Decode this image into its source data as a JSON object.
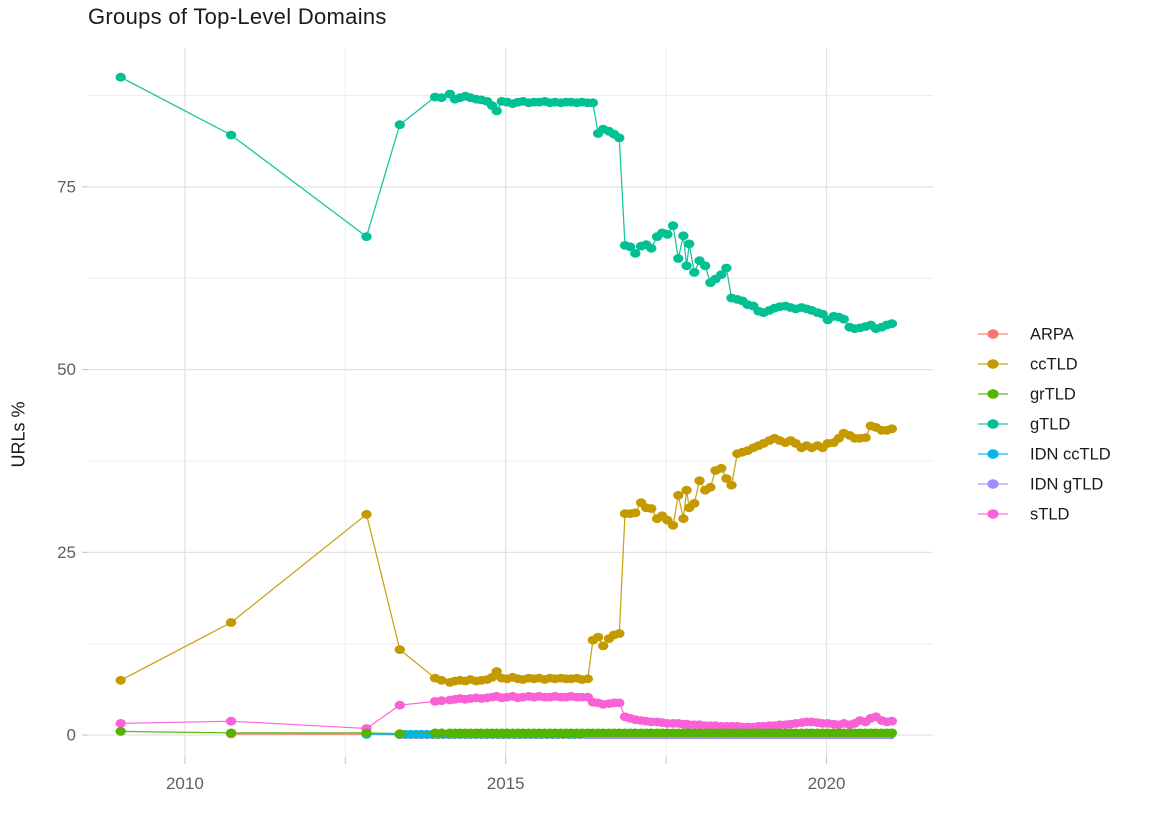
{
  "chart_data": {
    "type": "line",
    "title": "Groups of Top-Level Domains",
    "xlabel": "",
    "ylabel": "URLs %",
    "legend_position": "right",
    "grid": true,
    "xlim": [
      2008.49,
      2021.66
    ],
    "ylim": [
      -3,
      94
    ],
    "x_ticks": [
      2010,
      2015,
      2020
    ],
    "x_tick_labels": [
      "2010",
      "2015",
      "2020"
    ],
    "x_minor": [
      2012.5,
      2017.5
    ],
    "y_ticks": [
      0,
      25,
      50,
      75
    ],
    "y_tick_labels": [
      "0",
      "25",
      "50",
      "75"
    ],
    "y_minor": [
      12.5,
      37.5,
      62.5,
      87.5
    ],
    "shared_x": [
      2009.0,
      2010.72,
      2012.83,
      2013.35,
      2013.9,
      2014.0,
      2014.13,
      2014.21,
      2014.29,
      2014.37,
      2014.45,
      2014.54,
      2014.62,
      2014.71,
      2014.79,
      2014.86,
      2014.94,
      2015.02,
      2015.11,
      2015.19,
      2015.27,
      2015.36,
      2015.44,
      2015.52,
      2015.61,
      2015.69,
      2015.77,
      2015.86,
      2015.94,
      2016.02,
      2016.11,
      2016.19,
      2016.28,
      2016.36,
      2016.44,
      2016.52,
      2016.61,
      2016.69,
      2016.77,
      2016.86,
      2016.94,
      2017.02,
      2017.11,
      2017.19,
      2017.27,
      2017.36,
      2017.44,
      2017.52,
      2017.61,
      2017.69,
      2017.77,
      2017.82,
      2017.86,
      2017.94,
      2018.02,
      2018.11,
      2018.19,
      2018.27,
      2018.36,
      2018.44,
      2018.52,
      2018.61,
      2018.69,
      2018.77,
      2018.86,
      2018.94,
      2019.02,
      2019.11,
      2019.19,
      2019.27,
      2019.36,
      2019.44,
      2019.52,
      2019.61,
      2019.69,
      2019.77,
      2019.86,
      2019.94,
      2020.02,
      2020.11,
      2020.19,
      2020.27,
      2020.36,
      2020.44,
      2020.52,
      2020.61,
      2020.69,
      2020.77,
      2020.86,
      2020.94,
      2021.02
    ],
    "series": [
      {
        "name": "ARPA",
        "color": "#F8766D",
        "x_pre": [
          2010.72,
          2012.83
        ],
        "y_pre": [
          0.15,
          0.1
        ],
        "x_seq": [
          2013.35,
          2021.02,
          0.085
        ],
        "y_const": 0.05
      },
      {
        "name": "ccTLD",
        "color": "#C49A00",
        "x_key": "shared_x",
        "y": [
          7.5,
          15.4,
          30.2,
          11.7,
          7.8,
          7.5,
          7.2,
          7.4,
          7.5,
          7.4,
          7.6,
          7.4,
          7.5,
          7.6,
          7.9,
          8.7,
          7.8,
          7.7,
          7.9,
          7.7,
          7.6,
          7.8,
          7.7,
          7.8,
          7.6,
          7.8,
          7.7,
          7.8,
          7.7,
          7.7,
          7.8,
          7.6,
          7.7,
          13.0,
          13.4,
          12.2,
          13.2,
          13.7,
          13.9,
          30.3,
          30.3,
          30.4,
          31.8,
          31.1,
          31.0,
          29.6,
          30.0,
          29.4,
          28.7,
          32.8,
          29.6,
          33.5,
          31.1,
          31.7,
          34.8,
          33.5,
          33.9,
          36.2,
          36.5,
          35.1,
          34.2,
          38.5,
          38.7,
          38.9,
          39.3,
          39.6,
          39.9,
          40.3,
          40.6,
          40.3,
          40.0,
          40.3,
          39.9,
          39.3,
          39.6,
          39.3,
          39.6,
          39.3,
          39.9,
          40.0,
          40.6,
          41.3,
          41.0,
          40.6,
          40.6,
          40.7,
          42.3,
          42.1,
          41.7,
          41.7,
          41.9
        ]
      },
      {
        "name": "grTLD",
        "color": "#53B400",
        "x_key": "shared_x",
        "y": [
          0.5,
          0.3,
          0.3,
          0.2,
          0.3,
          0.3,
          0.3,
          0.3,
          0.3,
          0.3,
          0.3,
          0.3,
          0.3,
          0.3,
          0.3,
          0.3,
          0.3,
          0.3,
          0.3,
          0.3,
          0.3,
          0.3,
          0.3,
          0.3,
          0.3,
          0.3,
          0.3,
          0.3,
          0.3,
          0.3,
          0.3,
          0.3,
          0.3,
          0.3,
          0.3,
          0.3,
          0.3,
          0.3,
          0.3,
          0.3,
          0.3,
          0.3,
          0.3,
          0.3,
          0.3,
          0.3,
          0.3,
          0.3,
          0.3,
          0.3,
          0.3,
          0.3,
          0.3,
          0.3,
          0.3,
          0.3,
          0.3,
          0.3,
          0.3,
          0.3,
          0.3,
          0.3,
          0.3,
          0.3,
          0.3,
          0.3,
          0.3,
          0.3,
          0.3,
          0.3,
          0.3,
          0.3,
          0.3,
          0.3,
          0.3,
          0.3,
          0.3,
          0.3,
          0.3,
          0.3,
          0.3,
          0.3,
          0.3,
          0.3,
          0.3,
          0.3,
          0.3,
          0.3,
          0.3,
          0.3,
          0.3
        ]
      },
      {
        "name": "gTLD",
        "color": "#00C094",
        "x_key": "shared_x",
        "y": [
          90.0,
          82.1,
          68.2,
          83.5,
          87.3,
          87.2,
          87.7,
          87.0,
          87.2,
          87.4,
          87.2,
          87.0,
          86.9,
          86.7,
          86.1,
          85.4,
          86.7,
          86.6,
          86.4,
          86.6,
          86.7,
          86.5,
          86.6,
          86.6,
          86.7,
          86.5,
          86.6,
          86.5,
          86.6,
          86.6,
          86.5,
          86.6,
          86.5,
          86.5,
          82.3,
          82.9,
          82.6,
          82.2,
          81.7,
          67.0,
          66.8,
          65.9,
          66.9,
          67.1,
          66.6,
          68.2,
          68.7,
          68.5,
          69.7,
          65.2,
          68.3,
          64.2,
          67.2,
          63.3,
          64.9,
          64.2,
          61.9,
          62.4,
          63.0,
          63.9,
          59.8,
          59.6,
          59.4,
          58.9,
          58.7,
          58.0,
          57.8,
          58.1,
          58.4,
          58.6,
          58.7,
          58.5,
          58.3,
          58.5,
          58.3,
          58.1,
          57.8,
          57.6,
          56.8,
          57.3,
          57.2,
          56.9,
          55.8,
          55.6,
          55.7,
          55.9,
          56.1,
          55.6,
          55.8,
          56.1,
          56.3
        ]
      },
      {
        "name": "IDN ccTLD",
        "color": "#00B6EB",
        "x_pre": [
          2012.83
        ],
        "y_pre": [
          0.1
        ],
        "x_seq": [
          2013.35,
          2021.02,
          0.085
        ],
        "y_const": 0.1
      },
      {
        "name": "IDN gTLD",
        "color": "#A58AFF",
        "x_seq": [
          2016.28,
          2021.02,
          0.085
        ],
        "y_const": 0.05
      },
      {
        "name": "sTLD",
        "color": "#FB61D7",
        "x_key": "shared_x",
        "y": [
          1.6,
          1.9,
          0.9,
          4.1,
          4.6,
          4.7,
          4.8,
          4.9,
          5.0,
          4.9,
          5.0,
          5.1,
          5.0,
          5.1,
          5.2,
          5.3,
          5.1,
          5.2,
          5.3,
          5.1,
          5.2,
          5.3,
          5.2,
          5.3,
          5.2,
          5.2,
          5.3,
          5.2,
          5.2,
          5.3,
          5.2,
          5.2,
          5.2,
          4.5,
          4.4,
          4.2,
          4.3,
          4.4,
          4.4,
          2.5,
          2.3,
          2.1,
          2.0,
          1.9,
          1.8,
          1.8,
          1.7,
          1.6,
          1.6,
          1.6,
          1.5,
          1.5,
          1.4,
          1.4,
          1.4,
          1.3,
          1.3,
          1.3,
          1.2,
          1.2,
          1.2,
          1.2,
          1.1,
          1.1,
          1.1,
          1.2,
          1.2,
          1.3,
          1.3,
          1.4,
          1.4,
          1.5,
          1.6,
          1.7,
          1.8,
          1.8,
          1.7,
          1.6,
          1.6,
          1.5,
          1.4,
          1.6,
          1.4,
          1.6,
          2.0,
          1.8,
          2.3,
          2.5,
          2.0,
          1.8,
          1.9
        ]
      }
    ],
    "draw_order": [
      0,
      4,
      5,
      6,
      1,
      3,
      2
    ],
    "legend_title": "",
    "style": {
      "grid_major_color": "#E2E2E2",
      "grid_minor_color": "#EDEDED",
      "tick_color": "#C9C9C9",
      "tick_label_color": "#5f5f5f",
      "text_color": "#1a1a1a",
      "background": "#FFFFFF"
    }
  }
}
